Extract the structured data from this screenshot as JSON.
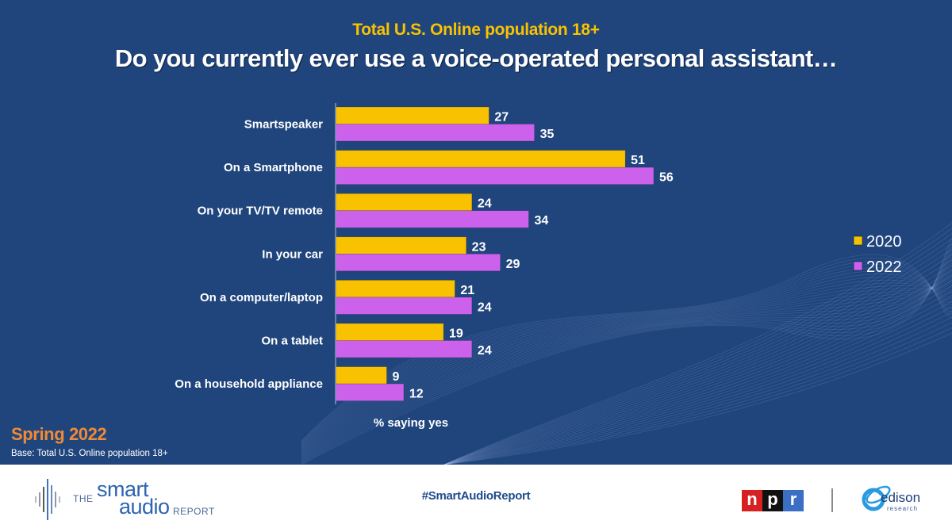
{
  "header": {
    "subtitle": "Total U.S. Online population 18+",
    "title": "Do you currently ever use a voice-operated personal assistant…"
  },
  "colors": {
    "background": "#20457d",
    "series_2020": "#f9c200",
    "series_2022": "#cc62ec",
    "season_text": "#f08a35"
  },
  "chart_data": {
    "type": "bar",
    "orientation": "horizontal",
    "title": "Do you currently ever use a voice-operated personal assistant…",
    "subtitle": "Total U.S. Online population 18+",
    "xlabel": "% saying yes",
    "ylabel": "",
    "xlim": [
      0,
      60
    ],
    "grid": false,
    "legend_position": "right",
    "categories": [
      "Smartspeaker",
      "On a Smartphone",
      "On your TV/TV remote",
      "In your car",
      "On a computer/laptop",
      "On a tablet",
      "On a household appliance"
    ],
    "series": [
      {
        "name": "2020",
        "color": "#f9c200",
        "values": [
          27,
          51,
          24,
          23,
          21,
          19,
          9
        ]
      },
      {
        "name": "2022",
        "color": "#cc62ec",
        "values": [
          35,
          56,
          34,
          29,
          24,
          24,
          12
        ]
      }
    ]
  },
  "notes": {
    "season": "Spring 2022",
    "base": "Base: Total U.S. Online population 18+"
  },
  "footer": {
    "logo": {
      "the": "THE",
      "smart": "smart",
      "audio": "audio",
      "report": "REPORT"
    },
    "hashtag": "#SmartAudioReport",
    "npr": [
      "n",
      "p",
      "r"
    ],
    "edison": {
      "name": "edison",
      "sub": "research"
    }
  }
}
